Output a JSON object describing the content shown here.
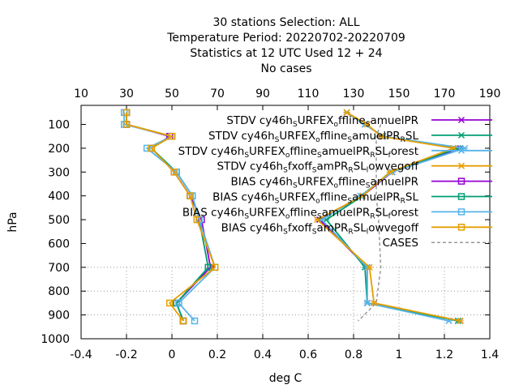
{
  "chart_data": {
    "type": "line",
    "title_lines": [
      "30 stations Selection: ALL",
      "Temperature  Period: 20220702-20220709",
      "Statistics at 12 UTC  Used  12 + 24",
      "No cases"
    ],
    "xlabel": "deg C",
    "ylabel": "hPa",
    "xlim": [
      -0.4,
      1.4
    ],
    "ylim": [
      1000,
      20
    ],
    "x_ticks": [
      "-0.4",
      "-0.2",
      "0",
      "0.2",
      "0.4",
      "0.6",
      "0.8",
      "1",
      "1.2",
      "1.4"
    ],
    "y_ticks": [
      "100",
      "200",
      "300",
      "400",
      "500",
      "600",
      "700",
      "800",
      "900",
      "1000"
    ],
    "x2lim": [
      10,
      190
    ],
    "x2_ticks": [
      "10",
      "30",
      "50",
      "70",
      "90",
      "110",
      "130",
      "150",
      "170",
      "190"
    ],
    "grid": "dotted grid lines at 700, 800 and 900 hPa",
    "legend_position": "top-right",
    "levels": [
      50,
      100,
      150,
      200,
      300,
      400,
      500,
      700,
      850,
      925
    ],
    "series": [
      {
        "name": "STDV cy46h_sURFEX_offline_samuelPR",
        "name_parts": [
          [
            "STDV cy46h",
            ""
          ],
          [
            "S",
            "sub"
          ],
          [
            "URFEX",
            ""
          ],
          [
            "o",
            "sub"
          ],
          [
            "ffline",
            ""
          ],
          [
            "S",
            "sub"
          ],
          [
            "amuelPR",
            ""
          ]
        ],
        "color": "#9400d3",
        "marker": "x",
        "dash": "",
        "values": [
          0.77,
          0.85,
          0.93,
          1.27,
          0.97,
          0.84,
          0.65,
          0.86,
          0.86,
          1.27
        ]
      },
      {
        "name": "STDV cy46h_sURFEX_offline_samuelPR_RSL",
        "name_parts": [
          [
            "STDV cy46h",
            ""
          ],
          [
            "S",
            "sub"
          ],
          [
            "URFEX",
            ""
          ],
          [
            "o",
            "sub"
          ],
          [
            "ffline",
            ""
          ],
          [
            "S",
            "sub"
          ],
          [
            "amuelPR",
            ""
          ],
          [
            "R",
            "sub"
          ],
          [
            "SL",
            ""
          ]
        ],
        "color": "#009e73",
        "marker": "x",
        "dash": "",
        "values": [
          0.77,
          0.85,
          0.93,
          1.26,
          0.96,
          0.84,
          0.68,
          0.85,
          0.86,
          1.26
        ]
      },
      {
        "name": "STDV cy46h_sURFEX_offline_samuelPR_RSL_forest",
        "name_parts": [
          [
            "STDV cy46h",
            ""
          ],
          [
            "S",
            "sub"
          ],
          [
            "URFEX",
            ""
          ],
          [
            "o",
            "sub"
          ],
          [
            "ffline",
            ""
          ],
          [
            "S",
            "sub"
          ],
          [
            "amuelPR",
            ""
          ],
          [
            "R",
            "sub"
          ],
          [
            "SL",
            ""
          ],
          [
            "f",
            "sub"
          ],
          [
            "orest",
            ""
          ]
        ],
        "color": "#56b4e9",
        "marker": "x",
        "dash": "",
        "values": [
          0.77,
          0.85,
          0.93,
          1.29,
          0.97,
          0.83,
          0.66,
          0.86,
          0.86,
          1.22
        ]
      },
      {
        "name": "STDV cy46h_sfxoff_samPR_RSL_lowvegoff",
        "name_parts": [
          [
            "STDV cy46h",
            ""
          ],
          [
            "S",
            "sub"
          ],
          [
            "fxoff",
            ""
          ],
          [
            "S",
            "sub"
          ],
          [
            "amPR",
            ""
          ],
          [
            "R",
            "sub"
          ],
          [
            "SL",
            ""
          ],
          [
            "l",
            "sub"
          ],
          [
            "owvegoff",
            ""
          ]
        ],
        "color": "#e69f00",
        "marker": "x",
        "dash": "",
        "values": [
          0.77,
          0.86,
          0.92,
          1.24,
          0.96,
          0.84,
          0.64,
          0.87,
          0.89,
          1.27
        ]
      },
      {
        "name": "BIAS cy46h_sURFEX_offline_samuelPR",
        "name_parts": [
          [
            "BIAS cy46h",
            ""
          ],
          [
            "S",
            "sub"
          ],
          [
            "URFEX",
            ""
          ],
          [
            "o",
            "sub"
          ],
          [
            "ffline",
            ""
          ],
          [
            "S",
            "sub"
          ],
          [
            "amuelPR",
            ""
          ]
        ],
        "color": "#9400d3",
        "marker": "square",
        "dash": "",
        "values": [
          -0.2,
          -0.2,
          -0.01,
          -0.09,
          0.01,
          0.08,
          0.13,
          0.17,
          0.02,
          0.05
        ]
      },
      {
        "name": "BIAS cy46h_sURFEX_offline_samuelPR_RSL",
        "name_parts": [
          [
            "BIAS cy46h",
            ""
          ],
          [
            "S",
            "sub"
          ],
          [
            "URFEX",
            ""
          ],
          [
            "o",
            "sub"
          ],
          [
            "ffline",
            ""
          ],
          [
            "S",
            "sub"
          ],
          [
            "amuelPR",
            ""
          ],
          [
            "R",
            "sub"
          ],
          [
            "SL",
            ""
          ]
        ],
        "color": "#009e73",
        "marker": "square",
        "dash": "",
        "values": [
          -0.2,
          -0.2,
          0.0,
          -0.09,
          0.02,
          0.09,
          0.12,
          0.16,
          0.02,
          0.05
        ]
      },
      {
        "name": "BIAS cy46h_sURFEX_offline_samuelPR_RSL_forest",
        "name_parts": [
          [
            "BIAS cy46h",
            ""
          ],
          [
            "S",
            "sub"
          ],
          [
            "URFEX",
            ""
          ],
          [
            "o",
            "sub"
          ],
          [
            "ffline",
            ""
          ],
          [
            "S",
            "sub"
          ],
          [
            "amuelPR",
            ""
          ],
          [
            "R",
            "sub"
          ],
          [
            "SL",
            ""
          ],
          [
            "f",
            "sub"
          ],
          [
            "orest",
            ""
          ]
        ],
        "color": "#56b4e9",
        "marker": "square",
        "dash": "",
        "values": [
          -0.21,
          -0.21,
          0.0,
          -0.11,
          0.02,
          0.09,
          0.12,
          0.19,
          0.03,
          0.1
        ]
      },
      {
        "name": "BIAS cy46h_sfxoff_samPR_RSL_lowvegoff",
        "name_parts": [
          [
            "BIAS cy46h",
            ""
          ],
          [
            "S",
            "sub"
          ],
          [
            "fxoff",
            ""
          ],
          [
            "S",
            "sub"
          ],
          [
            "amPR",
            ""
          ],
          [
            "R",
            "sub"
          ],
          [
            "SL",
            ""
          ],
          [
            "l",
            "sub"
          ],
          [
            "owvegoff",
            ""
          ]
        ],
        "color": "#e69f00",
        "marker": "square",
        "dash": "",
        "values": [
          -0.2,
          -0.2,
          0.0,
          -0.09,
          0.01,
          0.08,
          0.11,
          0.19,
          -0.01,
          0.05
        ]
      },
      {
        "name": "CASES",
        "name_parts": [
          [
            "CASES",
            ""
          ]
        ],
        "color": "#999999",
        "marker": "none",
        "dash": "4,3",
        "axis": "x2",
        "values": [
          null,
          142,
          140,
          140,
          140,
          140,
          141,
          142,
          140,
          132
        ]
      }
    ]
  }
}
